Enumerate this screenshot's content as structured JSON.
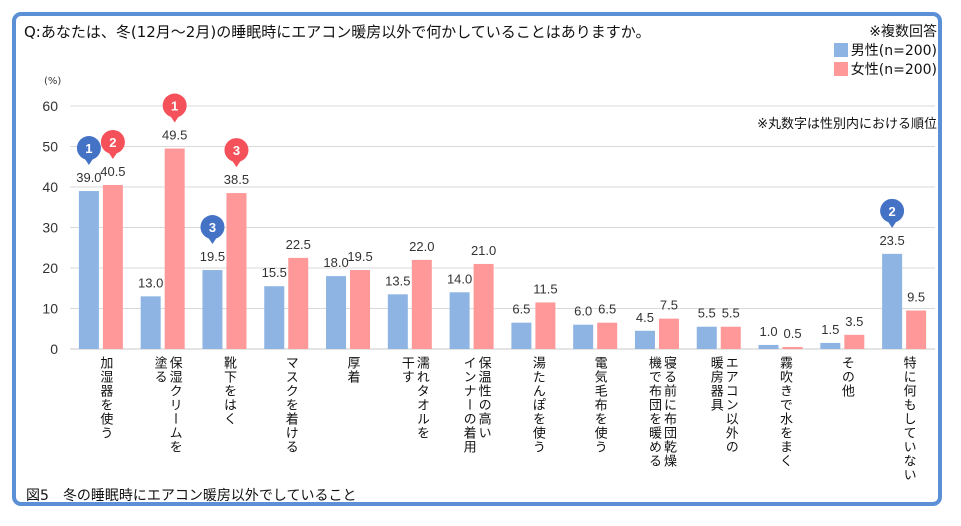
{
  "question": "Q:あなたは、冬(12月～2月)の睡眠時にエアコン暖房以外で何かしていることはありますか。",
  "multi_answer_note": "※複数回答",
  "rank_note": "※丸数字は性別内における順位",
  "figure_caption": "図5　冬の睡眠時にエアコン暖房以外でしていること",
  "colors": {
    "male": "#8EB4E3",
    "female": "#FF9999",
    "male_pin": "#4472C4",
    "female_pin": "#F4515A",
    "frame": "#5B8FD6",
    "grid": "#D9D9D9"
  },
  "chart_data": {
    "type": "bar",
    "title": "Q:あなたは、冬(12月～2月)の睡眠時にエアコン暖房以外で何かしていることはありますか。",
    "xlabel": "",
    "ylabel": "(%)",
    "ylim": [
      0,
      60
    ],
    "yticks": [
      0,
      10,
      20,
      30,
      40,
      50,
      60
    ],
    "grid": true,
    "legend_position": "top-right",
    "categories": [
      "加湿器を使う",
      "保湿クリームを塗る",
      "靴下をはく",
      "マスクを着ける",
      "厚着",
      "濡れタオルを干す",
      "保温性の高いインナーの着用",
      "湯たんぽを使う",
      "電気毛布を使う",
      "寝る前に布団乾燥機で布団を暖める",
      "エアコン以外の暖房器具",
      "霧吹きで水をまく",
      "その他",
      "特に何もしていない"
    ],
    "category_label_lines": [
      [
        "加湿器を使う"
      ],
      [
        "保湿クリームを",
        "塗る"
      ],
      [
        "靴下をはく"
      ],
      [
        "マスクを着ける"
      ],
      [
        "厚着"
      ],
      [
        "濡れタオルを",
        "干す"
      ],
      [
        "保温性の高い",
        "インナーの着用"
      ],
      [
        "湯たんぽを使う"
      ],
      [
        "電気毛布を使う"
      ],
      [
        "寝る前に布団乾燥",
        "機で布団を暖める"
      ],
      [
        "エアコン以外の",
        "暖房器具"
      ],
      [
        "霧吹きで水をまく"
      ],
      [
        "その他"
      ],
      [
        "特に何もしていない"
      ]
    ],
    "series": [
      {
        "name": "男性(n=200)",
        "values": [
          39.0,
          13.0,
          19.5,
          15.5,
          18.0,
          13.5,
          14.0,
          6.5,
          6.0,
          4.5,
          5.5,
          1.0,
          1.5,
          23.5
        ],
        "ranks": [
          1,
          null,
          3,
          null,
          null,
          null,
          null,
          null,
          null,
          null,
          null,
          null,
          null,
          2
        ]
      },
      {
        "name": "女性(n=200)",
        "values": [
          40.5,
          49.5,
          38.5,
          22.5,
          19.5,
          22.0,
          21.0,
          11.5,
          6.5,
          7.5,
          5.5,
          0.5,
          3.5,
          9.5
        ],
        "ranks": [
          2,
          1,
          3,
          null,
          null,
          null,
          null,
          null,
          null,
          null,
          null,
          null,
          null,
          null
        ]
      }
    ]
  }
}
